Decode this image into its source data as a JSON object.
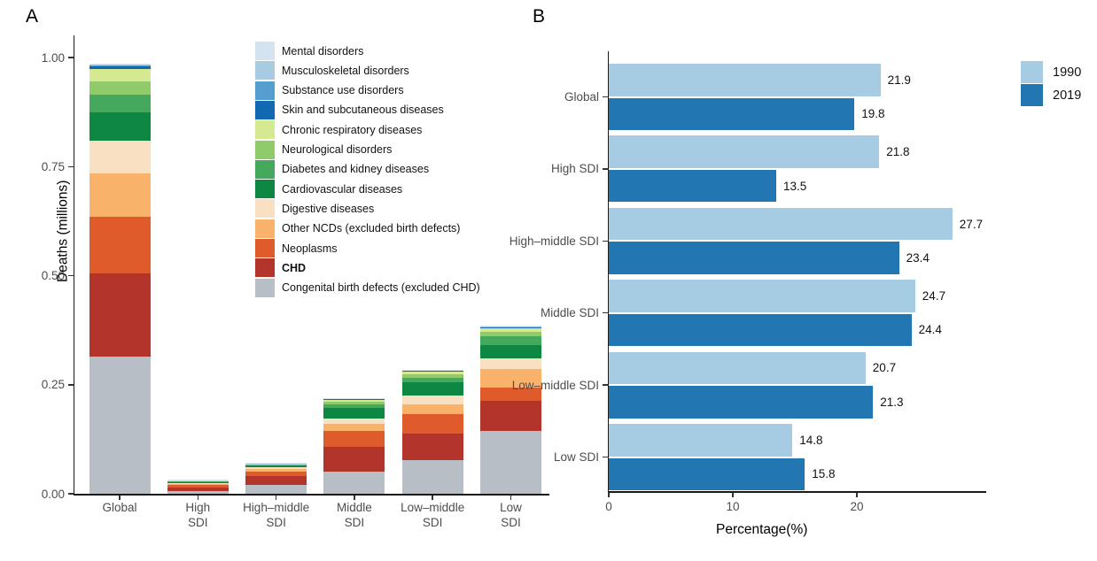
{
  "figure": {
    "background": "#ffffff",
    "axis_color": "#1a1a1a",
    "tick_text_color": "#4d4d4d"
  },
  "chart_data": [
    {
      "type": "bar",
      "subtype": "stacked-vertical",
      "panel_label": "A",
      "ylabel": "Deaths (millions)",
      "xlabel": "",
      "ylim": [
        0,
        1.05
      ],
      "yticks": [
        0.0,
        0.25,
        0.5,
        0.75,
        1.0
      ],
      "ytick_labels": [
        "0.00",
        "0.25",
        "0.50",
        "0.75",
        "1.00"
      ],
      "grid": false,
      "categories": [
        "Global",
        "High SDI",
        "High–middle SDI",
        "Middle SDI",
        "Low–middle SDI",
        "Low SDI"
      ],
      "category_lines": [
        [
          "Global"
        ],
        [
          "High",
          "SDI"
        ],
        [
          "High–middle",
          "SDI"
        ],
        [
          "Middle",
          "SDI"
        ],
        [
          "Low–middle",
          "SDI"
        ],
        [
          "Low",
          "SDI"
        ]
      ],
      "stack_order_note": "series listed bottom-to-top of stack; values estimated from pixel heights",
      "series": [
        {
          "name": "Congenital birth defects (excluded CHD)",
          "color": "#b7bec6",
          "values": [
            0.315,
            0.006,
            0.02,
            0.051,
            0.077,
            0.144
          ]
        },
        {
          "name": "CHD",
          "color": "#b2342b",
          "bold": true,
          "values": [
            0.19,
            0.008,
            0.02,
            0.056,
            0.061,
            0.069
          ]
        },
        {
          "name": "Neoplasms",
          "color": "#e05b2b",
          "values": [
            0.13,
            0.006,
            0.01,
            0.037,
            0.045,
            0.03
          ]
        },
        {
          "name": "Other NCDs (excluded birth defects)",
          "color": "#f9b26a",
          "values": [
            0.1,
            0.003,
            0.006,
            0.016,
            0.022,
            0.043
          ]
        },
        {
          "name": "Digestive diseases",
          "color": "#fae0c3",
          "values": [
            0.075,
            0.002,
            0.004,
            0.012,
            0.02,
            0.024
          ]
        },
        {
          "name": "Cardiovascular diseases",
          "color": "#0e8742",
          "values": [
            0.065,
            0.003,
            0.004,
            0.024,
            0.031,
            0.031
          ]
        },
        {
          "name": "Diabetes and kidney diseases",
          "color": "#44a95c",
          "values": [
            0.04,
            0.001,
            0.002,
            0.008,
            0.01,
            0.02
          ]
        },
        {
          "name": "Neurological disorders",
          "color": "#8fca6b",
          "values": [
            0.03,
            0.001,
            0.001,
            0.006,
            0.008,
            0.01
          ]
        },
        {
          "name": "Chronic respiratory diseases",
          "color": "#d5ea90",
          "values": [
            0.028,
            0.001,
            0.001,
            0.006,
            0.005,
            0.008
          ]
        },
        {
          "name": "Skin and subcutaneous diseases",
          "color": "#1268b1",
          "values": [
            0.006,
            0.0005,
            0.001,
            0.002,
            0.003,
            0.003
          ]
        },
        {
          "name": "Substance use disorders",
          "color": "#549ed0",
          "values": [
            0.003,
            0.0003,
            0.0005,
            0.001,
            0.001,
            0.001
          ]
        },
        {
          "name": "Musculoskeletal disorders",
          "color": "#a9cbe2",
          "values": [
            0.002,
            0.0002,
            0.0003,
            0.0005,
            0.0005,
            0.001
          ]
        },
        {
          "name": "Mental disorders",
          "color": "#d3e4f0",
          "values": [
            0.002,
            0.0002,
            0.0003,
            0.0005,
            0.0005,
            0.001
          ]
        }
      ],
      "legend_position": "inside-top-right",
      "legend_order_top_to_bottom": [
        "Mental disorders",
        "Musculoskeletal disorders",
        "Substance use disorders",
        "Skin and subcutaneous diseases",
        "Chronic respiratory diseases",
        "Neurological disorders",
        "Diabetes and kidney diseases",
        "Cardiovascular diseases",
        "Digestive diseases",
        "Other NCDs (excluded birth defects)",
        "Neoplasms",
        "CHD",
        "Congenital birth defects (excluded CHD)"
      ]
    },
    {
      "type": "bar",
      "subtype": "grouped-horizontal",
      "panel_label": "B",
      "xlabel": "Percentage(%)",
      "ylabel": "",
      "xlim": [
        0,
        30
      ],
      "xticks": [
        0,
        10,
        20
      ],
      "xtick_labels": [
        "0",
        "10",
        "20"
      ],
      "grid": false,
      "categories": [
        "Global",
        "High SDI",
        "High–middle SDI",
        "Middle SDI",
        "Low–middle SDI",
        "Low SDI"
      ],
      "series": [
        {
          "name": "1990",
          "color": "#a6cce3",
          "values": [
            21.9,
            21.8,
            27.7,
            24.7,
            20.7,
            14.8
          ]
        },
        {
          "name": "2019",
          "color": "#2277b2",
          "values": [
            19.8,
            13.5,
            23.4,
            24.4,
            21.3,
            15.8
          ]
        }
      ],
      "value_labels": {
        "1990": [
          "21.9",
          "21.8",
          "27.7",
          "24.7",
          "20.7",
          "14.8"
        ],
        "2019": [
          "19.8",
          "13.5",
          "23.4",
          "24.4",
          "21.3",
          "15.8"
        ]
      },
      "legend_position": "top-right",
      "legend_order_top_to_bottom": [
        "1990",
        "2019"
      ]
    }
  ]
}
